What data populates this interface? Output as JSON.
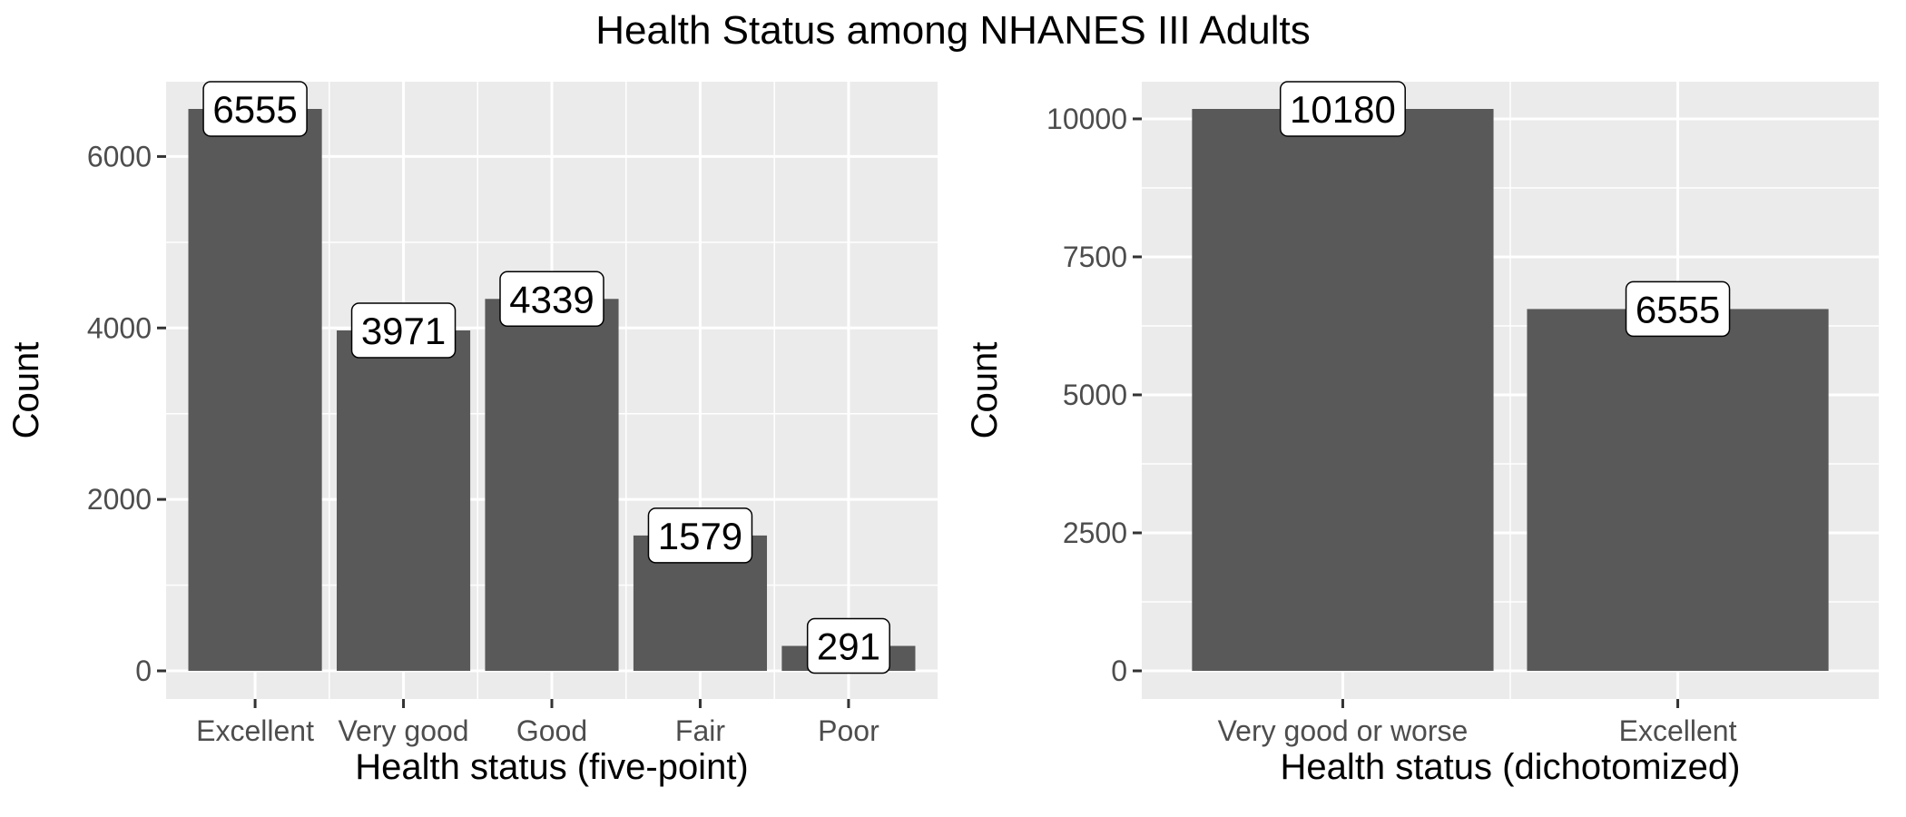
{
  "title": "Health Status among NHANES III Adults",
  "chart_data": [
    {
      "type": "bar",
      "categories": [
        "Excellent",
        "Very good",
        "Good",
        "Fair",
        "Poor"
      ],
      "values": [
        6555,
        3971,
        4339,
        1579,
        291
      ],
      "data_labels": [
        "6555",
        "3971",
        "4339",
        "1579",
        "291"
      ],
      "xlabel": "Health status (five-point)",
      "ylabel": "Count",
      "ylim": [
        0,
        6555
      ],
      "y_ticks": [
        0,
        2000,
        4000,
        6000
      ],
      "y_tick_labels": [
        "0",
        "2000",
        "4000",
        "6000"
      ],
      "y_minor_ticks": [
        1000,
        3000,
        5000
      ],
      "grid": true
    },
    {
      "type": "bar",
      "categories": [
        "Very good or worse",
        "Excellent"
      ],
      "values": [
        10180,
        6555
      ],
      "data_labels": [
        "10180",
        "6555"
      ],
      "xlabel": "Health status (dichotomized)",
      "ylabel": "Count",
      "ylim": [
        0,
        10180
      ],
      "y_ticks": [
        0,
        2500,
        5000,
        7500,
        10000
      ],
      "y_tick_labels": [
        "0",
        "2500",
        "5000",
        "7500",
        "10000"
      ],
      "y_minor_ticks": [
        1250,
        3750,
        6250,
        8750
      ],
      "grid": true
    }
  ]
}
